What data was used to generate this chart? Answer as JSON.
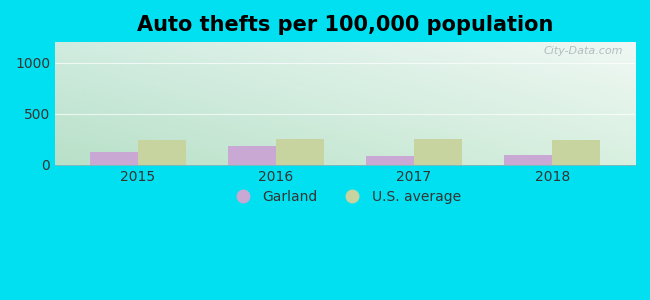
{
  "title": "Auto thefts per 100,000 population",
  "years": [
    2015,
    2016,
    2017,
    2018
  ],
  "garland_values": [
    130,
    185,
    90,
    95
  ],
  "us_avg_values": [
    240,
    255,
    255,
    245
  ],
  "garland_color": "#c9a8d4",
  "us_avg_color": "#c8d4a0",
  "ylim": [
    0,
    1200
  ],
  "yticks": [
    0,
    500,
    1000
  ],
  "bar_width": 0.35,
  "bg_top_color": "#e8f5ee",
  "bg_bottom_color": "#c8ecd8",
  "outer_bg": "#00e0f0",
  "title_fontsize": 15,
  "legend_labels": [
    "Garland",
    "U.S. average"
  ],
  "watermark": "City-Data.com"
}
